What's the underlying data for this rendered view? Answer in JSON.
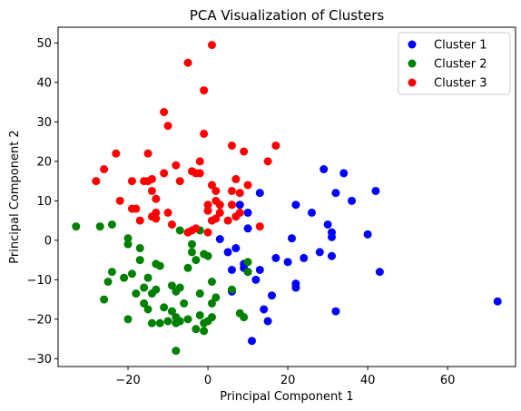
{
  "chart_data": {
    "type": "scatter",
    "title": "PCA Visualization of Clusters",
    "xlabel": "Principal Component 1",
    "ylabel": "Principal Component 2",
    "xlim": [
      -37.5,
      77
    ],
    "ylim": [
      -32,
      54
    ],
    "xticks": [
      -20,
      0,
      20,
      40,
      60
    ],
    "yticks": [
      -30,
      -20,
      -10,
      0,
      10,
      20,
      30,
      40,
      50
    ],
    "grid": false,
    "legend_position": "top-right",
    "series": [
      {
        "name": "Cluster 1",
        "color": "#0000ff",
        "points": [
          [
            3,
            0.3
          ],
          [
            5,
            -3
          ],
          [
            6,
            -7.5
          ],
          [
            7,
            -2
          ],
          [
            6,
            -13
          ],
          [
            8,
            9
          ],
          [
            10,
            7
          ],
          [
            10,
            3
          ],
          [
            9,
            -6
          ],
          [
            10,
            -8
          ],
          [
            12,
            -10
          ],
          [
            13,
            12
          ],
          [
            13,
            -7.5
          ],
          [
            14,
            -17.5
          ],
          [
            15,
            -20.5
          ],
          [
            16,
            -14
          ],
          [
            17,
            -4.5
          ],
          [
            11,
            -25.5
          ],
          [
            20,
            -5.5
          ],
          [
            21,
            0.5
          ],
          [
            22,
            9
          ],
          [
            22,
            -11
          ],
          [
            22,
            -12
          ],
          [
            24,
            -4.5
          ],
          [
            26,
            7
          ],
          [
            28,
            -3
          ],
          [
            29,
            18
          ],
          [
            30,
            4
          ],
          [
            31,
            2
          ],
          [
            31,
            -4
          ],
          [
            32,
            -18
          ],
          [
            32,
            12
          ],
          [
            34,
            17
          ],
          [
            36,
            10
          ],
          [
            40,
            1.5
          ],
          [
            42,
            12.5
          ],
          [
            43,
            -8
          ],
          [
            72.5,
            -15.5
          ],
          [
            31,
            0.8
          ],
          [
            9,
            -7
          ]
        ]
      },
      {
        "name": "Cluster 2",
        "color": "#008000",
        "points": [
          [
            -33,
            3.5
          ],
          [
            -27,
            3.5
          ],
          [
            -26,
            -15
          ],
          [
            -24,
            -8
          ],
          [
            -24,
            4
          ],
          [
            -25,
            -10.5
          ],
          [
            -21,
            -9.5
          ],
          [
            -20,
            -1
          ],
          [
            -20,
            0.5
          ],
          [
            -19,
            -8.5
          ],
          [
            -18,
            -13.5
          ],
          [
            -17,
            -5
          ],
          [
            -17,
            -2
          ],
          [
            -16,
            -12
          ],
          [
            -16,
            -16
          ],
          [
            -15,
            -9.5
          ],
          [
            -14,
            -13.5
          ],
          [
            -14,
            -21
          ],
          [
            -13,
            -6
          ],
          [
            -13,
            -12.5
          ],
          [
            -12,
            -6.5
          ],
          [
            -12,
            -21
          ],
          [
            -11,
            -17
          ],
          [
            -10,
            -20.5
          ],
          [
            -9,
            -11.5
          ],
          [
            -9,
            -18
          ],
          [
            -8,
            -28
          ],
          [
            -8,
            -13
          ],
          [
            -8,
            -19.5
          ],
          [
            -7,
            -12
          ],
          [
            -7,
            -20.5
          ],
          [
            -6,
            -16
          ],
          [
            -5,
            -7
          ],
          [
            -5,
            -20
          ],
          [
            -4,
            -1
          ],
          [
            -4,
            -3
          ],
          [
            -3,
            -22.5
          ],
          [
            -3,
            -5
          ],
          [
            -2,
            -13.5
          ],
          [
            -2,
            -19
          ],
          [
            -1,
            -3.5
          ],
          [
            -1,
            -23
          ],
          [
            -1,
            -21
          ],
          [
            0,
            -20.5
          ],
          [
            0,
            -4
          ],
          [
            1,
            -10.5
          ],
          [
            1,
            -16
          ],
          [
            1,
            -19.5
          ],
          [
            2,
            -14.5
          ],
          [
            6,
            -12.5
          ],
          [
            8,
            -18.5
          ],
          [
            9,
            -19.5
          ],
          [
            10,
            -5.5
          ],
          [
            10,
            -8
          ],
          [
            -7,
            2.5
          ],
          [
            -15,
            -17.5
          ],
          [
            -20,
            -20
          ],
          [
            -2,
            2.5
          ],
          [
            -8,
            -21
          ]
        ]
      },
      {
        "name": "Cluster 3",
        "color": "#ff0000",
        "points": [
          [
            -28,
            15
          ],
          [
            -26,
            18
          ],
          [
            -23,
            22
          ],
          [
            -22,
            10
          ],
          [
            -19,
            15
          ],
          [
            -19,
            8
          ],
          [
            -18,
            8
          ],
          [
            -17,
            5
          ],
          [
            -16,
            15
          ],
          [
            -15,
            15
          ],
          [
            -15,
            22
          ],
          [
            -14,
            12.5
          ],
          [
            -14,
            15.5
          ],
          [
            -14,
            6
          ],
          [
            -13,
            7
          ],
          [
            -13,
            10.5
          ],
          [
            -13,
            5.5
          ],
          [
            -11,
            32.5
          ],
          [
            -11,
            17
          ],
          [
            -10,
            7
          ],
          [
            -10,
            29
          ],
          [
            -9,
            4
          ],
          [
            -8,
            19
          ],
          [
            -7,
            15
          ],
          [
            -5,
            45
          ],
          [
            -5,
            2
          ],
          [
            -4,
            2.5
          ],
          [
            -4,
            17.5
          ],
          [
            -3,
            17
          ],
          [
            -3,
            3
          ],
          [
            -2,
            20
          ],
          [
            -2,
            17
          ],
          [
            -1,
            38
          ],
          [
            -1,
            27
          ],
          [
            0,
            9
          ],
          [
            0,
            7.5
          ],
          [
            0,
            2
          ],
          [
            1,
            49.5
          ],
          [
            1,
            14
          ],
          [
            1,
            5
          ],
          [
            2,
            5.5
          ],
          [
            2,
            10
          ],
          [
            2,
            12.5
          ],
          [
            3,
            9
          ],
          [
            5,
            5
          ],
          [
            6,
            9
          ],
          [
            6,
            24
          ],
          [
            6,
            12.5
          ],
          [
            7,
            15.5
          ],
          [
            8,
            7
          ],
          [
            8,
            12
          ],
          [
            9,
            22.5
          ],
          [
            10,
            14
          ],
          [
            13,
            3.5
          ],
          [
            15,
            20
          ],
          [
            17,
            24
          ],
          [
            3,
            7
          ],
          [
            7,
            6
          ]
        ]
      }
    ]
  }
}
